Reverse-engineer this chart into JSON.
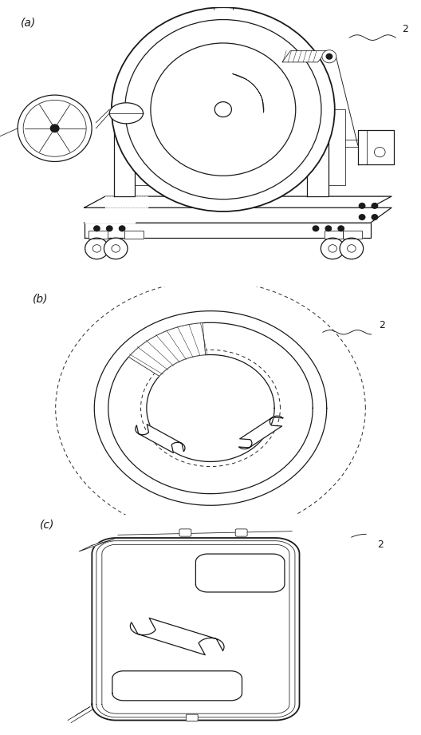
{
  "bg_color": "#ffffff",
  "line_color": "#1a1a1a",
  "fig_width": 5.28,
  "fig_height": 9.21,
  "panels": [
    "(a)",
    "(b)",
    "(c)"
  ],
  "panel_label_fontsize": 10,
  "ref_number": "2",
  "ref_fontsize": 9,
  "lw_main": 0.9,
  "lw_thin": 0.55,
  "lw_thick": 1.3
}
